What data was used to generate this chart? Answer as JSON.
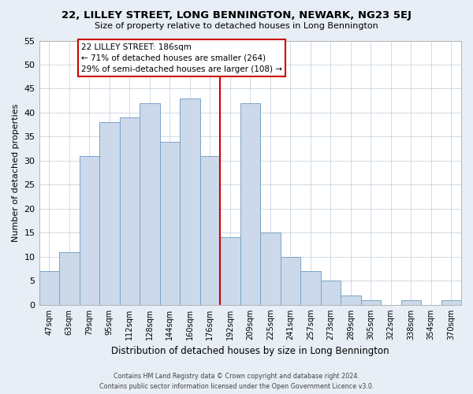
{
  "title": "22, LILLEY STREET, LONG BENNINGTON, NEWARK, NG23 5EJ",
  "subtitle": "Size of property relative to detached houses in Long Bennington",
  "xlabel": "Distribution of detached houses by size in Long Bennington",
  "ylabel": "Number of detached properties",
  "bar_labels": [
    "47sqm",
    "63sqm",
    "79sqm",
    "95sqm",
    "112sqm",
    "128sqm",
    "144sqm",
    "160sqm",
    "176sqm",
    "192sqm",
    "209sqm",
    "225sqm",
    "241sqm",
    "257sqm",
    "273sqm",
    "289sqm",
    "305sqm",
    "322sqm",
    "338sqm",
    "354sqm",
    "370sqm"
  ],
  "bar_values": [
    7,
    11,
    31,
    38,
    39,
    42,
    34,
    43,
    31,
    14,
    42,
    15,
    10,
    7,
    5,
    2,
    1,
    0,
    1,
    0,
    1
  ],
  "bar_color": "#ccd9ea",
  "bar_edge_color": "#7aa3c8",
  "reference_line_x": 8.5,
  "reference_line_color": "#cc0000",
  "ylim": [
    0,
    55
  ],
  "yticks": [
    0,
    5,
    10,
    15,
    20,
    25,
    30,
    35,
    40,
    45,
    50,
    55
  ],
  "annotation_line1": "22 LILLEY STREET: 186sqm",
  "annotation_line2": "← 71% of detached houses are smaller (264)",
  "annotation_line3": "29% of semi-detached houses are larger (108) →",
  "footer_line1": "Contains HM Land Registry data © Crown copyright and database right 2024.",
  "footer_line2": "Contains public sector information licensed under the Open Government Licence v3.0.",
  "bg_color": "#e8eef5",
  "plot_bg_color": "#ffffff",
  "grid_color": "#c8d4e0"
}
